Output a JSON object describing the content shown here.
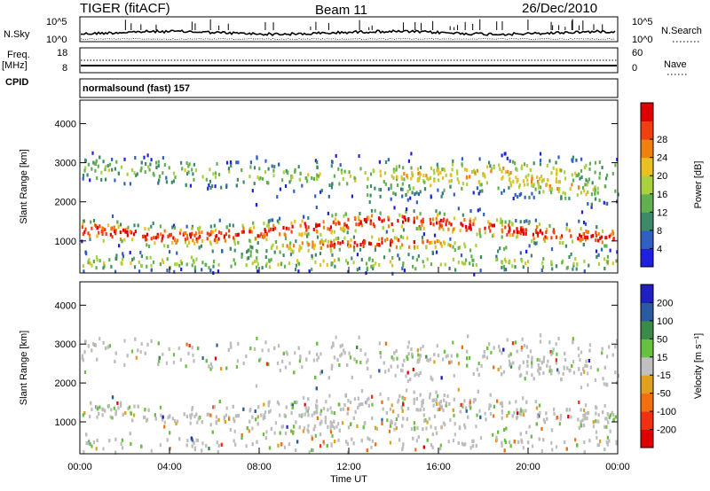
{
  "header": {
    "radar": "TIGER (fitACF)",
    "beam": "Beam 11",
    "date": "26/Dec/2010"
  },
  "summary": {
    "nsky_label": "N.Sky",
    "nsky_top": "10^5",
    "nsky_bottom": "10^0",
    "nsearch_label": "N.Search",
    "nsearch_top": "10^5",
    "nsearch_bottom": "10^0",
    "freq_label": "Freq.",
    "freq_unit": "[MHz]",
    "freq_top": "18",
    "freq_bottom": "8",
    "nave_label": "Nave",
    "nave_top": "60",
    "nave_bottom": "0",
    "cpid_label": "CPID",
    "cpid_value": "normalsound (fast) 157"
  },
  "colors": {
    "power": [
      "#2020e0",
      "#3060c0",
      "#3e8a68",
      "#60b050",
      "#a8d040",
      "#e8c020",
      "#f08010",
      "#f04010",
      "#e00000"
    ],
    "velocity": [
      "#2020c0",
      "#2a5aa0",
      "#3a8a4a",
      "#68c040",
      "#c0c0c0",
      "#e0a020",
      "#f07010",
      "#f03010",
      "#e00000"
    ],
    "gray": "#bdbdbd"
  },
  "chart_data": [
    {
      "type": "heatmap",
      "name": "power",
      "xlabel": "Time UT",
      "ylabel": "Slant Range [km]",
      "xlim": [
        0,
        24
      ],
      "ylim": [
        180,
        4600
      ],
      "xticks": [
        "00:00",
        "04:00",
        "08:00",
        "12:00",
        "16:00",
        "20:00",
        "00:00"
      ],
      "yticks": [
        1000,
        2000,
        3000,
        4000
      ],
      "colorbar": {
        "label": "Power [dB]",
        "ticks": [
          "4",
          "8",
          "12",
          "16",
          "20",
          "24",
          "28"
        ]
      }
    },
    {
      "type": "heatmap",
      "name": "velocity",
      "xlabel": "Time UT",
      "ylabel": "Slant Range [km]",
      "xlim": [
        0,
        24
      ],
      "ylim": [
        180,
        4600
      ],
      "xticks": [
        "00:00",
        "04:00",
        "08:00",
        "12:00",
        "16:00",
        "20:00",
        "00:00"
      ],
      "yticks": [
        1000,
        2000,
        3000,
        4000
      ],
      "colorbar": {
        "label": "Velocity [m s⁻¹]",
        "ticks": [
          "200",
          "100",
          "50",
          "15",
          "-15",
          "-50",
          "-100",
          "-200"
        ]
      }
    }
  ]
}
